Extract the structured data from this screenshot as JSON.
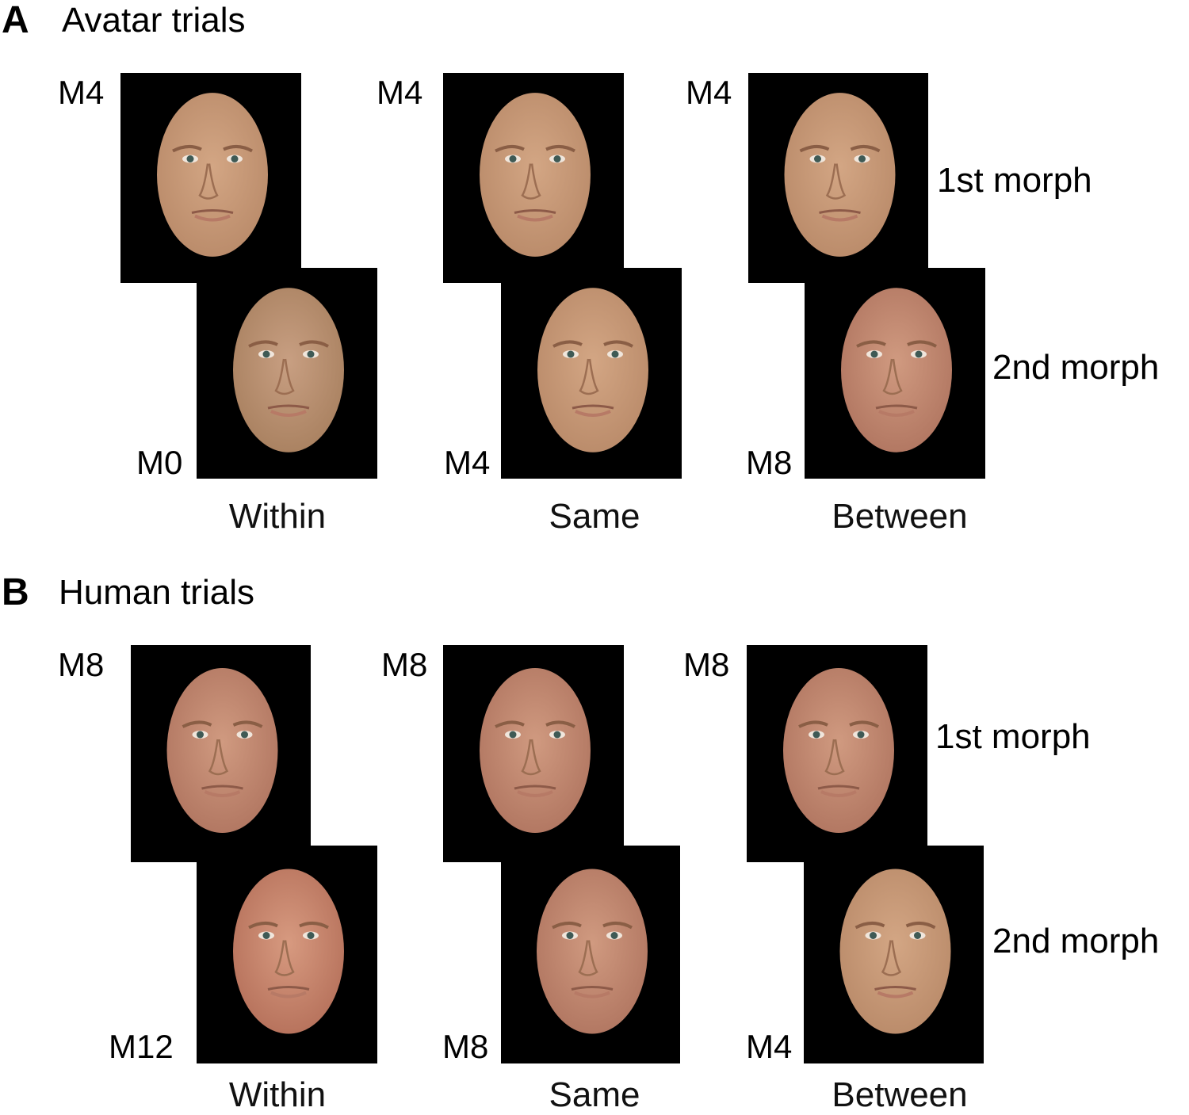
{
  "panels": [
    {
      "letter": "A",
      "title": "Avatar trials",
      "conditions": [
        {
          "label": "Within",
          "first": "M4",
          "second": "M0"
        },
        {
          "label": "Same",
          "first": "M4",
          "second": "M4"
        },
        {
          "label": "Between",
          "first": "M4",
          "second": "M8"
        }
      ],
      "first_morph_label": "1st morph",
      "second_morph_label": "2nd morph"
    },
    {
      "letter": "B",
      "title": "Human trials",
      "conditions": [
        {
          "label": "Within",
          "first": "M8",
          "second": "M12"
        },
        {
          "label": "Same",
          "first": "M8",
          "second": "M8"
        },
        {
          "label": "Between",
          "first": "M8",
          "second": "M4"
        }
      ],
      "first_morph_label": "1st morph",
      "second_morph_label": "2nd morph"
    }
  ],
  "colors": {
    "background": "#000000",
    "skin_avatar": "#c99a78",
    "skin_human": "#c8937a"
  }
}
